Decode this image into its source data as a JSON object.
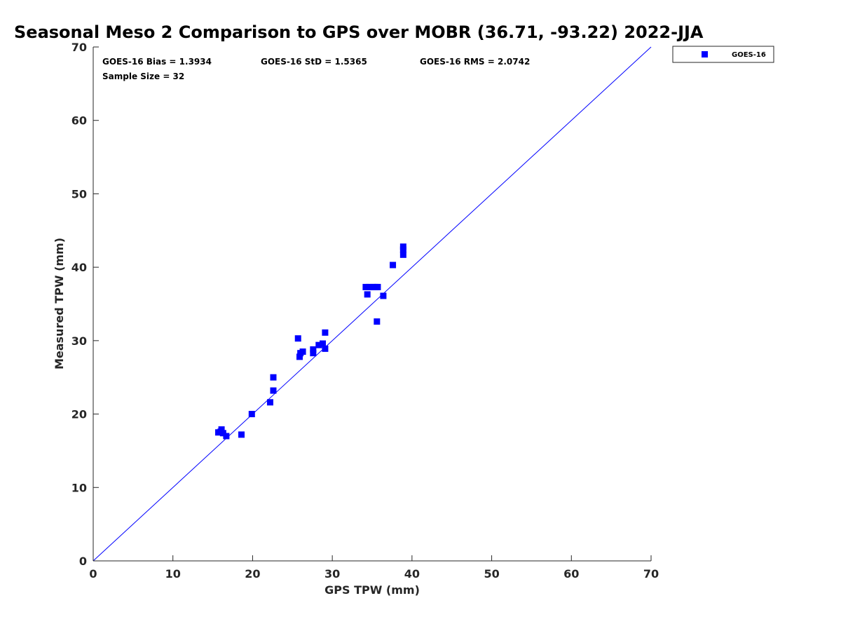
{
  "chart_data": {
    "type": "scatter",
    "title": "Seasonal Meso 2 Comparison to GPS over MOBR (36.71, -93.22) 2022-JJA",
    "xlabel": "GPS TPW (mm)",
    "ylabel": "Measured TPW (mm)",
    "xlim": [
      0,
      70
    ],
    "ylim": [
      0,
      70
    ],
    "xticks": [
      0,
      10,
      20,
      30,
      40,
      50,
      60,
      70
    ],
    "yticks": [
      0,
      10,
      20,
      30,
      40,
      50,
      60,
      70
    ],
    "grid": false,
    "legend_position": "top-right (outside plot)",
    "reference_line": {
      "type": "one-to-one",
      "from": [
        0,
        0
      ],
      "to": [
        70,
        70
      ],
      "color": "#0000ff"
    },
    "stats": {
      "bias": "GOES-16 Bias = 1.3934",
      "std": "GOES-16 StD = 1.5365",
      "rms": "GOES-16 RMS = 2.0742",
      "sample_size": "Sample Size = 32"
    },
    "series": [
      {
        "name": "GOES-16",
        "color": "#0000ff",
        "marker": "square",
        "points": [
          [
            15.7,
            17.5
          ],
          [
            16.0,
            17.6
          ],
          [
            16.1,
            17.9
          ],
          [
            16.3,
            17.4
          ],
          [
            16.7,
            17.0
          ],
          [
            18.6,
            17.2
          ],
          [
            19.9,
            20.0
          ],
          [
            22.2,
            21.6
          ],
          [
            22.6,
            23.2
          ],
          [
            22.6,
            25.0
          ],
          [
            25.7,
            30.3
          ],
          [
            25.9,
            27.8
          ],
          [
            26.0,
            28.3
          ],
          [
            26.3,
            28.5
          ],
          [
            27.6,
            28.3
          ],
          [
            27.6,
            28.8
          ],
          [
            28.3,
            29.4
          ],
          [
            28.8,
            29.6
          ],
          [
            29.1,
            28.9
          ],
          [
            29.1,
            31.1
          ],
          [
            34.2,
            37.3
          ],
          [
            34.4,
            36.3
          ],
          [
            34.6,
            37.3
          ],
          [
            35.1,
            37.3
          ],
          [
            35.4,
            37.3
          ],
          [
            35.7,
            37.3
          ],
          [
            35.6,
            32.6
          ],
          [
            36.4,
            36.1
          ],
          [
            37.6,
            40.3
          ],
          [
            38.9,
            41.7
          ],
          [
            38.9,
            42.4
          ],
          [
            38.9,
            42.8
          ]
        ]
      }
    ]
  }
}
